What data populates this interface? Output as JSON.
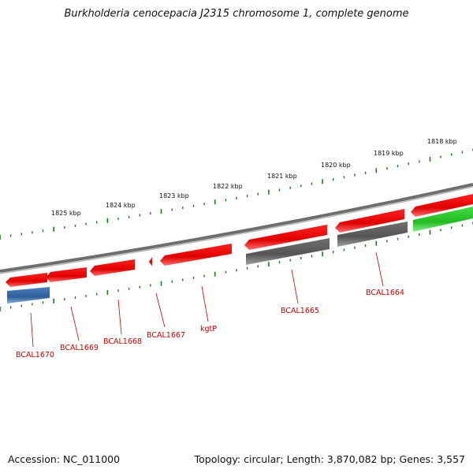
{
  "title": "Burkholderia cenocepacia J2315 chromosome 1, complete genome",
  "accession_text": "Accession: NC_011000",
  "summary_text": "Topology: circular; Length: 3,870,082 bp; Genes: 3,557",
  "colors": {
    "backbone": "#808080",
    "gene_red": "#ee1111",
    "gene_gray": "#666666",
    "gene_blue": "#3d6fa8",
    "gene_green": "#33cc33",
    "tick_green": "#1a7a1a",
    "label_red": "#cc0000"
  },
  "scale_labels": [
    "1825 kbp",
    "1824 kbp",
    "1823 kbp",
    "1822 kbp",
    "1821 kbp",
    "1820 kbp",
    "1819 kbp",
    "1818 kbp"
  ],
  "gene_labels": [
    "BCAL1670",
    "BCAL1669",
    "BCAL1668",
    "BCAL1667",
    "kgtP",
    "BCAL1665",
    "BCAL1664"
  ]
}
